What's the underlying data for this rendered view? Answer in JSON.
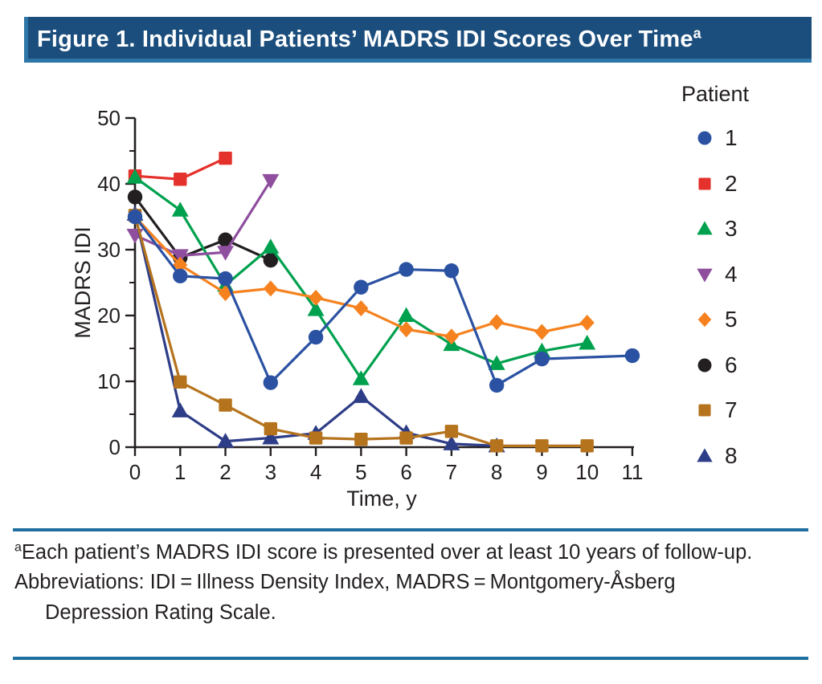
{
  "header": {
    "title": "Figure 1. Individual Patients’ MADRS IDI Scores Over Time",
    "superscript": "a",
    "bar_color": "#1b4e7d",
    "edge_color": "#2d76a7"
  },
  "legend": {
    "title": "Patient"
  },
  "chart_data": {
    "type": "line",
    "title": "",
    "xlabel": "Time, y",
    "ylabel": "MADRS IDI",
    "xlim": [
      0,
      11
    ],
    "ylim": [
      0,
      50
    ],
    "x_ticks": [
      0,
      1,
      2,
      3,
      4,
      5,
      6,
      7,
      8,
      9,
      10,
      11
    ],
    "y_ticks": [
      0,
      10,
      20,
      30,
      40,
      50
    ],
    "y_minor_ticks": [
      5,
      15,
      25,
      35,
      45
    ],
    "grid": false,
    "legend_title": "Patient",
    "legend_position": "right",
    "axis_color": "#231f20",
    "series": [
      {
        "name": "1",
        "marker": "circle",
        "color": "#2b52a2",
        "points": [
          [
            0,
            35
          ],
          [
            1,
            26
          ],
          [
            2,
            25.6
          ],
          [
            3,
            9.8
          ],
          [
            4,
            16.7
          ],
          [
            5,
            24.3
          ],
          [
            6,
            27
          ],
          [
            7,
            26.8
          ],
          [
            8,
            9.4
          ],
          [
            9,
            13.4
          ],
          [
            11,
            13.9
          ]
        ]
      },
      {
        "name": "2",
        "marker": "square",
        "color": "#e5312b",
        "points": [
          [
            0,
            41.2
          ],
          [
            1,
            40.7
          ],
          [
            2,
            43.9
          ]
        ]
      },
      {
        "name": "3",
        "marker": "triangle-up",
        "color": "#00a14e",
        "points": [
          [
            0,
            41
          ],
          [
            1,
            36
          ],
          [
            2,
            24.6
          ],
          [
            3,
            30.4
          ],
          [
            4,
            20.9
          ],
          [
            5,
            10.4
          ],
          [
            6,
            20
          ],
          [
            7,
            15.6
          ],
          [
            8,
            12.7
          ],
          [
            9,
            14.6
          ],
          [
            10,
            15.8
          ]
        ]
      },
      {
        "name": "4",
        "marker": "triangle-down",
        "color": "#8f4f9e",
        "points": [
          [
            0,
            32.2
          ],
          [
            1,
            29.1
          ],
          [
            2,
            29.6
          ],
          [
            3,
            40.5
          ]
        ]
      },
      {
        "name": "5",
        "marker": "diamond",
        "color": "#f5821f",
        "points": [
          [
            0,
            35
          ],
          [
            1,
            27.7
          ],
          [
            2,
            23.4
          ],
          [
            3,
            24.1
          ],
          [
            4,
            22.7
          ],
          [
            5,
            21.1
          ],
          [
            6,
            17.9
          ],
          [
            7,
            16.8
          ],
          [
            8,
            19
          ],
          [
            9,
            17.5
          ],
          [
            10,
            18.9
          ]
        ]
      },
      {
        "name": "6",
        "marker": "circle",
        "color": "#231f20",
        "points": [
          [
            0,
            38
          ],
          [
            1,
            28.8
          ],
          [
            2,
            31.5
          ],
          [
            3,
            28.4
          ]
        ]
      },
      {
        "name": "7",
        "marker": "square",
        "color": "#b5731d",
        "points": [
          [
            0,
            35.2
          ],
          [
            1,
            9.9
          ],
          [
            2,
            6.4
          ],
          [
            3,
            2.8
          ],
          [
            4,
            1.4
          ],
          [
            5,
            1.2
          ],
          [
            6,
            1.4
          ],
          [
            7,
            2.4
          ],
          [
            8,
            0.2
          ],
          [
            9,
            0.2
          ],
          [
            10,
            0.2
          ]
        ]
      },
      {
        "name": "8",
        "marker": "triangle-up",
        "color": "#2e3d87",
        "points": [
          [
            0,
            35.4
          ],
          [
            1,
            5.5
          ],
          [
            2,
            0.9
          ],
          [
            3,
            1.4
          ],
          [
            4,
            2.1
          ],
          [
            5,
            7.7
          ],
          [
            6,
            2.2
          ],
          [
            7,
            0.5
          ],
          [
            8,
            0.2
          ]
        ]
      }
    ]
  },
  "footnotes": [
    {
      "sup": "a",
      "text": "Each patient’s MADRS IDI score is presented over at least 10 years of follow-up."
    },
    {
      "sup": "",
      "text": "Abbreviations: IDI = Illness Density Index, MADRS = Montgomery-Åsberg Depression Rating Scale."
    }
  ],
  "rule_color": "#1f6fa0"
}
